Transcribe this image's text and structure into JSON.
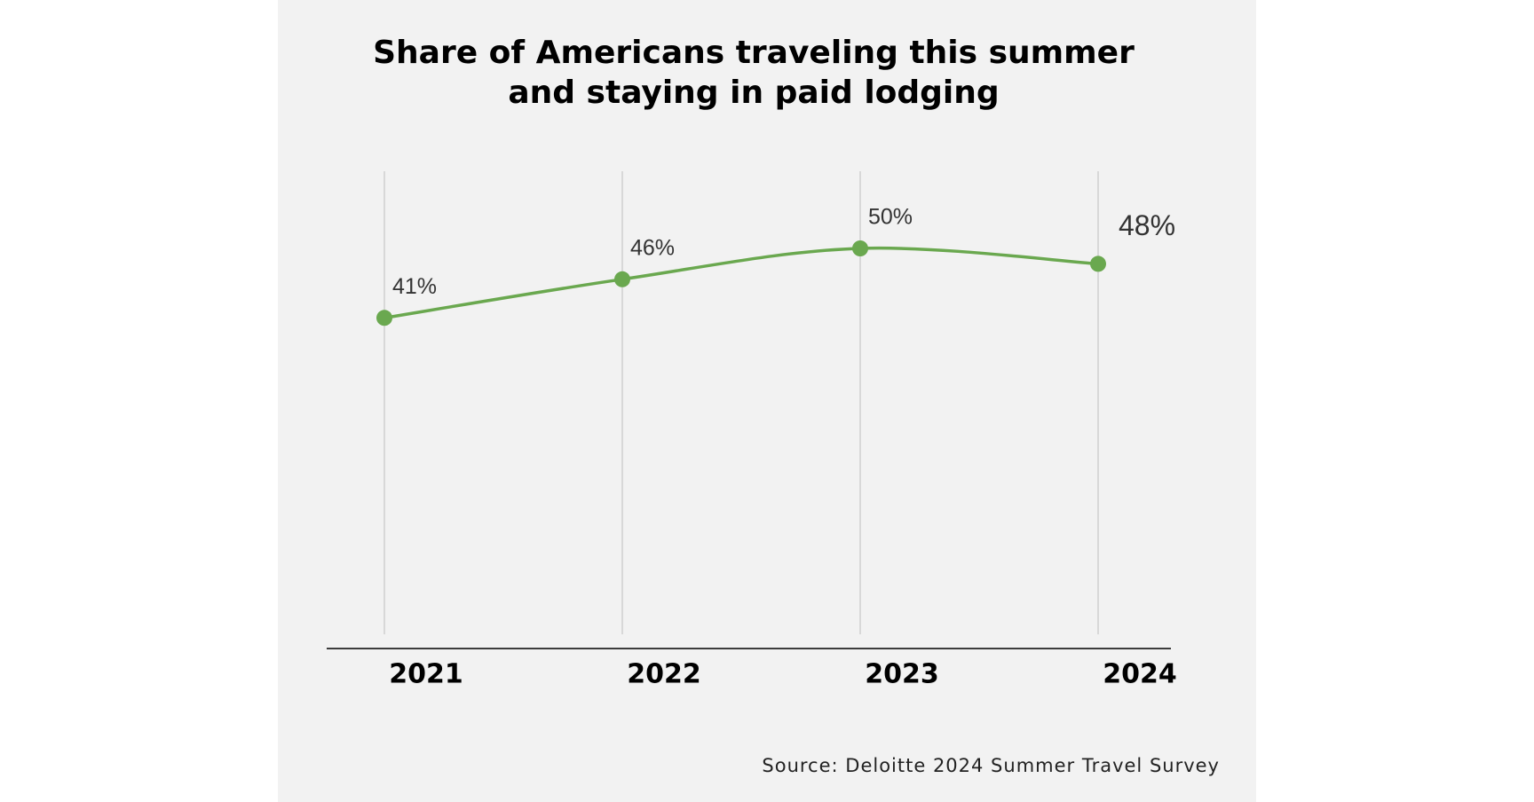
{
  "chart_data": {
    "type": "line",
    "title": [
      "Share of Americans traveling this summer",
      "and staying in paid lodging"
    ],
    "categories": [
      "2021",
      "2022",
      "2023",
      "2024"
    ],
    "series": [
      {
        "color": "#6aa84f",
        "values": [
          41,
          46,
          50,
          48
        ],
        "value_labels": [
          "41%",
          "46%",
          "50%",
          "48%"
        ]
      }
    ],
    "highlight_index": 3,
    "ylim": [
      0,
      60
    ],
    "grid": true,
    "source": "Source: Deloitte 2024 Summer Travel Survey"
  }
}
